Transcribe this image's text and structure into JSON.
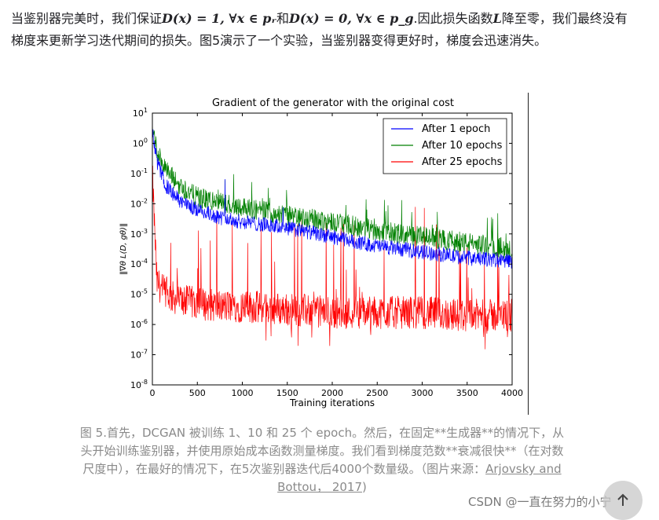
{
  "paragraph": {
    "part1": "当鉴别器完美时，我们保证",
    "math1": "D(x) = 1, ∀x ∈ pᵣ",
    "part2": "和",
    "math2": "D(x) = 0, ∀x ∈ p_g",
    "part3": ".因此损失函数",
    "math3": "L",
    "part4": "降至零，我们最终没有梯度来更新学习迭代期间的损失。图5演示了一个实验，当鉴别器变得更好时，梯度会迅速消失。"
  },
  "chart_data": {
    "type": "line",
    "title": "Gradient of the generator with the original cost",
    "xlabel": "Training iterations",
    "ylabel": "‖∇θ L(D, gθ)‖",
    "xlim": [
      0,
      4000
    ],
    "ylim_log10": [
      -8,
      1
    ],
    "x_ticks": [
      "0",
      "500",
      "1000",
      "1500",
      "2000",
      "2500",
      "3000",
      "3500",
      "4000"
    ],
    "y_ticks": [
      {
        "base": "10",
        "exp": "1"
      },
      {
        "base": "10",
        "exp": "0"
      },
      {
        "base": "10",
        "exp": "-1"
      },
      {
        "base": "10",
        "exp": "-2"
      },
      {
        "base": "10",
        "exp": "-3"
      },
      {
        "base": "10",
        "exp": "-4"
      },
      {
        "base": "10",
        "exp": "-5"
      },
      {
        "base": "10",
        "exp": "-6"
      },
      {
        "base": "10",
        "exp": "-7"
      },
      {
        "base": "10",
        "exp": "-8"
      }
    ],
    "legend_position": "top-right",
    "series": [
      {
        "name": "After 1 epoch",
        "color": "#0000ff",
        "x": [
          0,
          50,
          150,
          300,
          500,
          800,
          1000,
          1500,
          2000,
          2500,
          3000,
          3500,
          4000
        ],
        "log10_y": [
          0.4,
          -0.6,
          -1.4,
          -1.9,
          -2.2,
          -2.5,
          -2.6,
          -2.8,
          -3.1,
          -3.4,
          -3.6,
          -3.8,
          -3.9
        ]
      },
      {
        "name": "After 10 epochs",
        "color": "#008000",
        "x": [
          0,
          50,
          150,
          300,
          500,
          800,
          1000,
          1500,
          2000,
          2500,
          3000,
          3500,
          4000
        ],
        "log10_y": [
          0.5,
          -0.2,
          -0.9,
          -1.4,
          -1.8,
          -2.0,
          -2.1,
          -2.4,
          -2.6,
          -2.9,
          -3.1,
          -3.3,
          -3.5
        ]
      },
      {
        "name": "After 25 epochs",
        "color": "#ff0000",
        "x": [
          0,
          50,
          150,
          300,
          500,
          800,
          1000,
          1500,
          2000,
          2500,
          3000,
          3500,
          4000
        ],
        "log10_y": [
          -1.0,
          -4.6,
          -5.0,
          -5.2,
          -5.3,
          -5.4,
          -5.4,
          -5.5,
          -5.6,
          -5.6,
          -5.6,
          -5.7,
          -5.7
        ]
      }
    ]
  },
  "caption": {
    "text": "图 5.首先，DCGAN 被训练 1、10 和 25 个 epoch。然后，在固定**生成器**的情况下，从头开始训练鉴别器，并使用原始成本函数测量梯度。我们看到梯度范数**衰减很快**（在对数尺度中），在最好的情况下，在5次鉴别器迭代后4000个数量级。（图片来源：",
    "source_link": "Arjovsky and Bottou， 2017",
    "close": ")"
  },
  "watermark": "CSDN @一直在努力的小宁"
}
